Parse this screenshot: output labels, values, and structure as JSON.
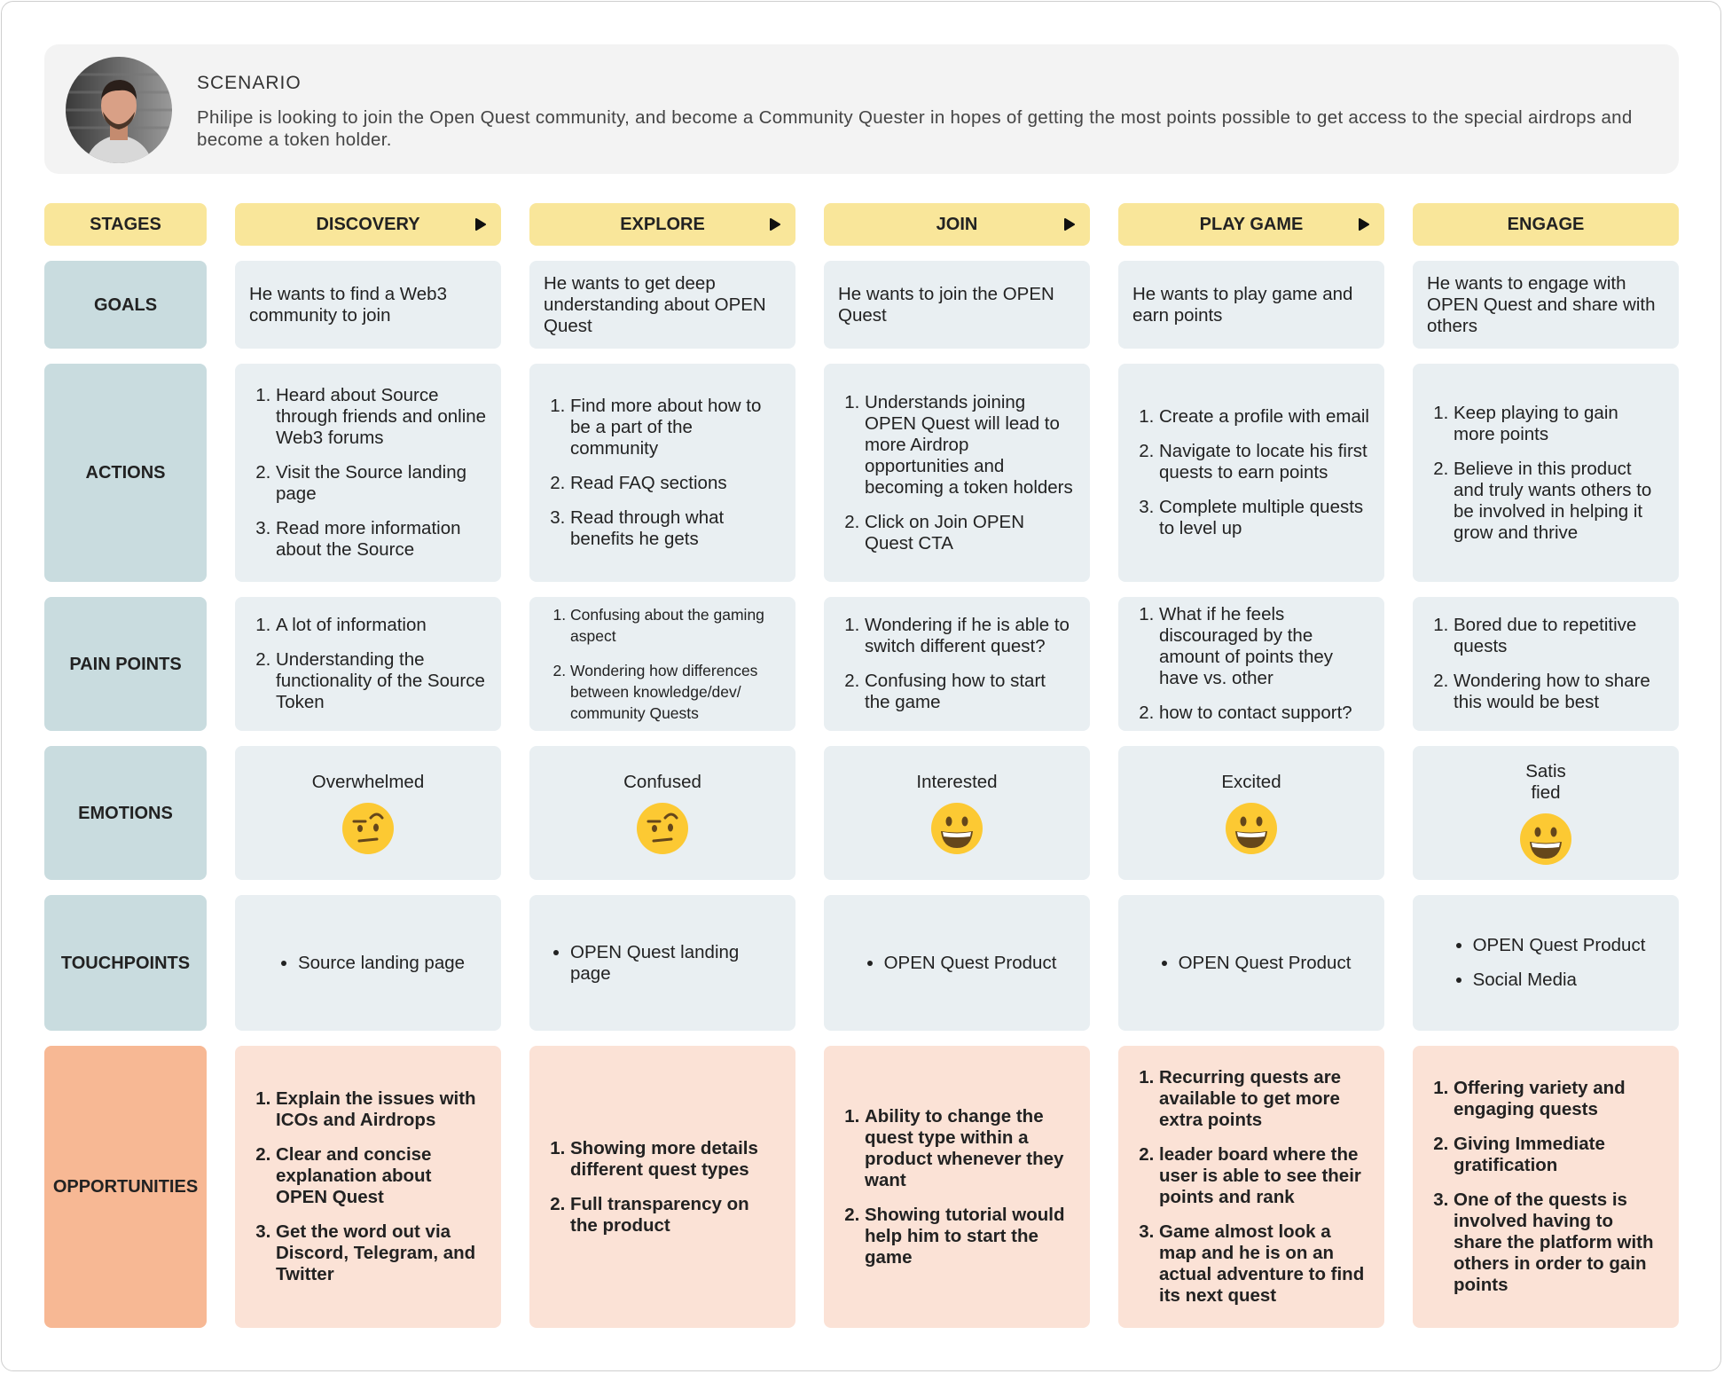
{
  "scenario": {
    "title": "SCENARIO",
    "text": "Philipe is looking to join the Open Quest community, and become a Community Quester in hopes of getting the most points possible to get access to the special airdrops and become a token holder."
  },
  "stages": {
    "label": "STAGES",
    "items": [
      "DISCOVERY",
      "EXPLORE",
      "JOIN",
      "PLAY GAME",
      "ENGAGE"
    ]
  },
  "rows": [
    {
      "label": "GOALS",
      "cells": [
        "He wants to find a Web3 community to join",
        "He wants to get deep understanding  about OPEN Quest",
        "He wants to join the OPEN Quest",
        "He wants to play game and earn points",
        "He wants to engage with OPEN Quest and share with others"
      ]
    },
    {
      "label": "ACTIONS",
      "cells": [
        [
          "Heard about Source through friends and online Web3 forums",
          "Visit the Source landing page",
          "Read more information about the Source"
        ],
        [
          "Find more about how to be a part of the community",
          "Read FAQ sections",
          "Read through what benefits he gets"
        ],
        [
          "Understands joining OPEN Quest will lead to more Airdrop opportunities and becoming a token holders",
          "Click on Join OPEN Quest CTA"
        ],
        [
          "Create a profile with email",
          "Navigate to locate his first quests to earn points",
          "Complete multiple quests to level up"
        ],
        [
          "Keep playing to gain more points",
          "Believe in this product and truly wants others to be involved in helping it grow and thrive"
        ]
      ]
    },
    {
      "label": "PAIN POINTS",
      "cells": [
        [
          "A lot of information",
          "Understanding the functionality of the Source Token"
        ],
        [
          "Confusing about the gaming aspect",
          "Wondering how differences between knowledge/dev/ community Quests"
        ],
        [
          "Wondering if he is able to switch different quest?",
          "Confusing how to start the game"
        ],
        [
          "What if he feels discouraged by the amount of points they have vs. other",
          "how to contact support?"
        ],
        [
          "Bored due to repetitive quests",
          "Wondering how to share this would be best"
        ]
      ]
    },
    {
      "label": "EMOTIONS",
      "cells": [
        "Overwhelmed",
        "Confused",
        "Interested",
        "Excited",
        "Satis\nfied"
      ]
    },
    {
      "label": "TOUCHPOINTS",
      "cells": [
        [
          "Source landing page"
        ],
        [
          "OPEN Quest landing page"
        ],
        [
          "OPEN Quest Product"
        ],
        [
          "OPEN Quest Product"
        ],
        [
          "OPEN Quest Product",
          "Social Media"
        ]
      ]
    },
    {
      "label": "OPPORTUNITIES",
      "cells": [
        [
          "Explain the issues with ICOs and Airdrops",
          "Clear and concise explanation about OPEN Quest",
          "Get the word out via Discord, Telegram, and Twitter"
        ],
        [
          "Showing more details different quest types",
          "Full transparency on the product"
        ],
        [
          "Ability to change the quest type within a product whenever they want",
          "Showing tutorial would help him to start the game"
        ],
        [
          "Recurring quests are available to get more extra points",
          "leader board where the user is able to see their points and rank",
          "Game almost look a map and he is on an actual adventure to find its next quest"
        ],
        [
          "Offering variety and engaging quests",
          "Giving Immediate gratification",
          "One of the quests is involved having to share the platform with others in order to gain points"
        ]
      ]
    }
  ]
}
